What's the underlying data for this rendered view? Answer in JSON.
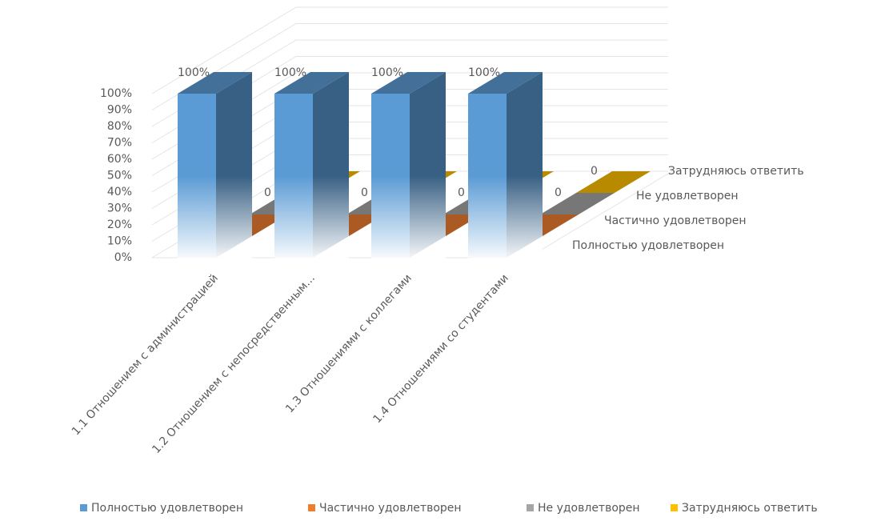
{
  "chart_data": {
    "type": "bar3d",
    "categories": [
      "1.1 Отношением с администрацией",
      "1.2 Отношением с непосредственным...",
      "1.3 Отношениями с коллегами",
      "1.4 Отношениями со студентами"
    ],
    "series": [
      {
        "name": "Полностью удовлетворен",
        "color": "#5b9bd5",
        "values": [
          100,
          100,
          100,
          100
        ],
        "value_labels": [
          "100%",
          "100%",
          "100%",
          "100%"
        ]
      },
      {
        "name": "Частично удовлетворен",
        "color": "#ed7d31",
        "values": [
          0,
          0,
          0,
          0
        ]
      },
      {
        "name": "Не удовлетворен",
        "color": "#a5a5a5",
        "values": [
          0,
          0,
          0,
          0
        ]
      },
      {
        "name": "Затрудняюсь ответить",
        "color": "#ffc000",
        "values": [
          0,
          0,
          0,
          0
        ]
      }
    ],
    "ylim": [
      0,
      100
    ],
    "yticks": [
      {
        "value": 0,
        "label": "0%"
      },
      {
        "value": 10,
        "label": "10%"
      },
      {
        "value": 20,
        "label": "20%"
      },
      {
        "value": 30,
        "label": "30%"
      },
      {
        "value": 40,
        "label": "40%"
      },
      {
        "value": 50,
        "label": "50%"
      },
      {
        "value": 60,
        "label": "60%"
      },
      {
        "value": 70,
        "label": "70%"
      },
      {
        "value": 80,
        "label": "80%"
      },
      {
        "value": 90,
        "label": "90%"
      },
      {
        "value": 100,
        "label": "100%"
      }
    ],
    "grid": true,
    "legend": "bottom"
  }
}
